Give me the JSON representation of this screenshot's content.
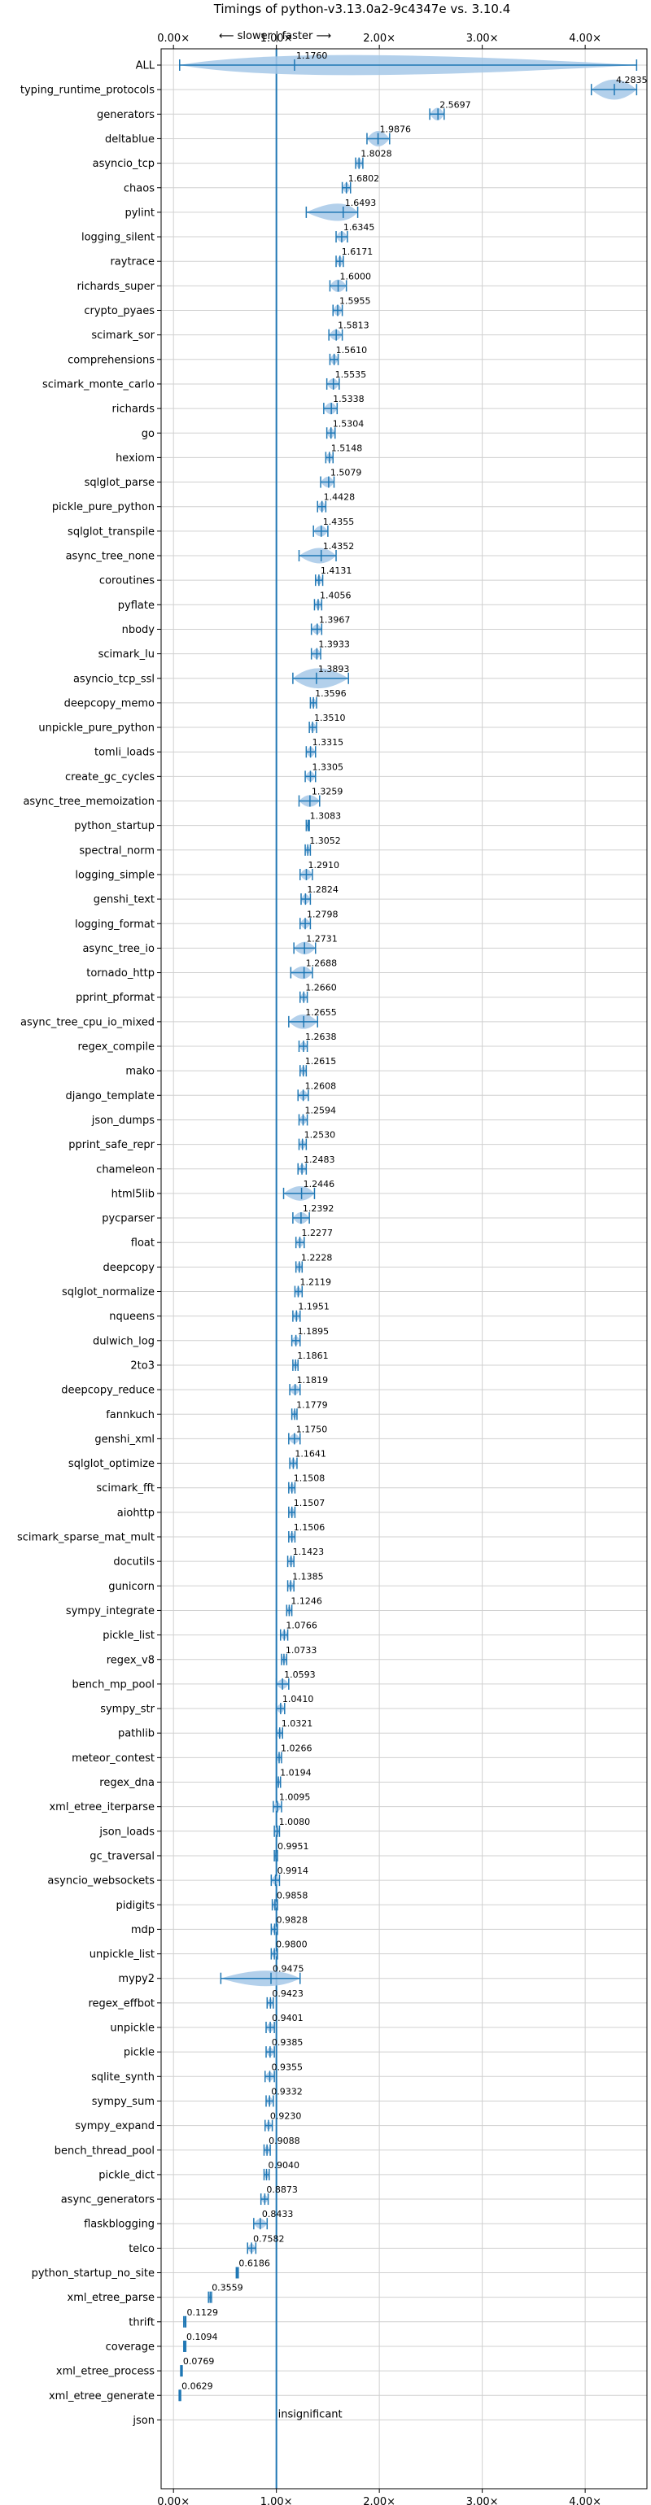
{
  "chart_data": {
    "type": "violin",
    "title": "Timings of python-v3.13.0a2-9c4347e vs. 3.10.4",
    "direction_label": "⟵ slower | faster ⟶",
    "xlim": [
      -0.12,
      4.6
    ],
    "x_ticks": [
      0,
      1,
      2,
      3,
      4
    ],
    "x_tick_labels": [
      "0.00×",
      "1.00×",
      "2.00×",
      "3.00×",
      "4.00×"
    ],
    "grid": true,
    "reference_value": 1.0,
    "insignificant_label": "insignificant",
    "benchmarks": [
      {
        "name": "ALL",
        "value": 1.176,
        "min": 0.06,
        "max": 4.5,
        "spread": 0.5
      },
      {
        "name": "typing_runtime_protocols",
        "value": 4.2835,
        "min": 4.06,
        "max": 4.5,
        "spread": 0.18
      },
      {
        "name": "generators",
        "value": 2.5697,
        "min": 2.49,
        "max": 2.63,
        "spread": 0.07
      },
      {
        "name": "deltablue",
        "value": 1.9876,
        "min": 1.88,
        "max": 2.1,
        "spread": 0.1
      },
      {
        "name": "asyncio_tcp",
        "value": 1.8028,
        "min": 1.77,
        "max": 1.84,
        "spread": 0.04
      },
      {
        "name": "chaos",
        "value": 1.6802,
        "min": 1.64,
        "max": 1.72,
        "spread": 0.04
      },
      {
        "name": "pylint",
        "value": 1.6493,
        "min": 1.29,
        "max": 1.79,
        "spread": 0.12
      },
      {
        "name": "logging_silent",
        "value": 1.6345,
        "min": 1.58,
        "max": 1.69,
        "spread": 0.05
      },
      {
        "name": "raytrace",
        "value": 1.6171,
        "min": 1.58,
        "max": 1.65,
        "spread": 0.04
      },
      {
        "name": "richards_super",
        "value": 1.6,
        "min": 1.52,
        "max": 1.68,
        "spread": 0.07
      },
      {
        "name": "crypto_pyaes",
        "value": 1.5955,
        "min": 1.55,
        "max": 1.64,
        "spread": 0.05
      },
      {
        "name": "scimark_sor",
        "value": 1.5813,
        "min": 1.51,
        "max": 1.64,
        "spread": 0.05
      },
      {
        "name": "comprehensions",
        "value": 1.561,
        "min": 1.52,
        "max": 1.6,
        "spread": 0.04
      },
      {
        "name": "scimark_monte_carlo",
        "value": 1.5535,
        "min": 1.49,
        "max": 1.61,
        "spread": 0.05
      },
      {
        "name": "richards",
        "value": 1.5338,
        "min": 1.46,
        "max": 1.59,
        "spread": 0.06
      },
      {
        "name": "go",
        "value": 1.5304,
        "min": 1.49,
        "max": 1.57,
        "spread": 0.04
      },
      {
        "name": "hexiom",
        "value": 1.5148,
        "min": 1.48,
        "max": 1.55,
        "spread": 0.03
      },
      {
        "name": "sqlglot_parse",
        "value": 1.5079,
        "min": 1.43,
        "max": 1.56,
        "spread": 0.05
      },
      {
        "name": "pickle_pure_python",
        "value": 1.4428,
        "min": 1.4,
        "max": 1.48,
        "spread": 0.04
      },
      {
        "name": "sqlglot_transpile",
        "value": 1.4355,
        "min": 1.36,
        "max": 1.5,
        "spread": 0.05
      },
      {
        "name": "async_tree_none",
        "value": 1.4352,
        "min": 1.22,
        "max": 1.58,
        "spread": 0.1
      },
      {
        "name": "coroutines",
        "value": 1.4131,
        "min": 1.38,
        "max": 1.45,
        "spread": 0.03
      },
      {
        "name": "pyflate",
        "value": 1.4056,
        "min": 1.37,
        "max": 1.44,
        "spread": 0.03
      },
      {
        "name": "nbody",
        "value": 1.3967,
        "min": 1.34,
        "max": 1.44,
        "spread": 0.04
      },
      {
        "name": "scimark_lu",
        "value": 1.3933,
        "min": 1.34,
        "max": 1.43,
        "spread": 0.04
      },
      {
        "name": "asyncio_tcp_ssl",
        "value": 1.3893,
        "min": 1.16,
        "max": 1.7,
        "spread": 0.15
      },
      {
        "name": "deepcopy_memo",
        "value": 1.3596,
        "min": 1.33,
        "max": 1.39,
        "spread": 0.03
      },
      {
        "name": "unpickle_pure_python",
        "value": 1.351,
        "min": 1.32,
        "max": 1.39,
        "spread": 0.03
      },
      {
        "name": "tomli_loads",
        "value": 1.3315,
        "min": 1.29,
        "max": 1.38,
        "spread": 0.04
      },
      {
        "name": "create_gc_cycles",
        "value": 1.3305,
        "min": 1.28,
        "max": 1.38,
        "spread": 0.04
      },
      {
        "name": "async_tree_memoization",
        "value": 1.3259,
        "min": 1.22,
        "max": 1.42,
        "spread": 0.06
      },
      {
        "name": "python_startup",
        "value": 1.3083,
        "min": 1.29,
        "max": 1.32,
        "spread": 0.02
      },
      {
        "name": "spectral_norm",
        "value": 1.3052,
        "min": 1.28,
        "max": 1.33,
        "spread": 0.02
      },
      {
        "name": "logging_simple",
        "value": 1.291,
        "min": 1.23,
        "max": 1.35,
        "spread": 0.05
      },
      {
        "name": "genshi_text",
        "value": 1.2824,
        "min": 1.24,
        "max": 1.33,
        "spread": 0.04
      },
      {
        "name": "logging_format",
        "value": 1.2798,
        "min": 1.23,
        "max": 1.33,
        "spread": 0.04
      },
      {
        "name": "async_tree_io",
        "value": 1.2731,
        "min": 1.17,
        "max": 1.38,
        "spread": 0.07
      },
      {
        "name": "tornado_http",
        "value": 1.2688,
        "min": 1.14,
        "max": 1.35,
        "spread": 0.07
      },
      {
        "name": "pprint_pformat",
        "value": 1.266,
        "min": 1.23,
        "max": 1.3,
        "spread": 0.03
      },
      {
        "name": "async_tree_cpu_io_mixed",
        "value": 1.2655,
        "min": 1.12,
        "max": 1.4,
        "spread": 0.09
      },
      {
        "name": "regex_compile",
        "value": 1.2638,
        "min": 1.22,
        "max": 1.3,
        "spread": 0.03
      },
      {
        "name": "mako",
        "value": 1.2615,
        "min": 1.23,
        "max": 1.29,
        "spread": 0.03
      },
      {
        "name": "django_template",
        "value": 1.2608,
        "min": 1.21,
        "max": 1.31,
        "spread": 0.04
      },
      {
        "name": "json_dumps",
        "value": 1.2594,
        "min": 1.22,
        "max": 1.3,
        "spread": 0.03
      },
      {
        "name": "pprint_safe_repr",
        "value": 1.253,
        "min": 1.22,
        "max": 1.29,
        "spread": 0.03
      },
      {
        "name": "chameleon",
        "value": 1.2483,
        "min": 1.21,
        "max": 1.29,
        "spread": 0.03
      },
      {
        "name": "html5lib",
        "value": 1.2446,
        "min": 1.07,
        "max": 1.37,
        "spread": 0.09
      },
      {
        "name": "pycparser",
        "value": 1.2392,
        "min": 1.16,
        "max": 1.32,
        "spread": 0.06
      },
      {
        "name": "float",
        "value": 1.2277,
        "min": 1.19,
        "max": 1.27,
        "spread": 0.03
      },
      {
        "name": "deepcopy",
        "value": 1.2228,
        "min": 1.19,
        "max": 1.25,
        "spread": 0.03
      },
      {
        "name": "sqlglot_normalize",
        "value": 1.2119,
        "min": 1.18,
        "max": 1.25,
        "spread": 0.03
      },
      {
        "name": "nqueens",
        "value": 1.1951,
        "min": 1.16,
        "max": 1.23,
        "spread": 0.03
      },
      {
        "name": "dulwich_log",
        "value": 1.1895,
        "min": 1.15,
        "max": 1.23,
        "spread": 0.03
      },
      {
        "name": "2to3",
        "value": 1.1861,
        "min": 1.16,
        "max": 1.21,
        "spread": 0.02
      },
      {
        "name": "deepcopy_reduce",
        "value": 1.1819,
        "min": 1.13,
        "max": 1.23,
        "spread": 0.04
      },
      {
        "name": "fannkuch",
        "value": 1.1779,
        "min": 1.15,
        "max": 1.2,
        "spread": 0.02
      },
      {
        "name": "genshi_xml",
        "value": 1.175,
        "min": 1.12,
        "max": 1.23,
        "spread": 0.04
      },
      {
        "name": "sqlglot_optimize",
        "value": 1.1641,
        "min": 1.13,
        "max": 1.2,
        "spread": 0.03
      },
      {
        "name": "scimark_fft",
        "value": 1.1508,
        "min": 1.12,
        "max": 1.18,
        "spread": 0.03
      },
      {
        "name": "aiohttp",
        "value": 1.1507,
        "min": 1.12,
        "max": 1.18,
        "spread": 0.03
      },
      {
        "name": "scimark_sparse_mat_mult",
        "value": 1.1506,
        "min": 1.12,
        "max": 1.18,
        "spread": 0.03
      },
      {
        "name": "docutils",
        "value": 1.1423,
        "min": 1.11,
        "max": 1.17,
        "spread": 0.03
      },
      {
        "name": "gunicorn",
        "value": 1.1385,
        "min": 1.11,
        "max": 1.17,
        "spread": 0.03
      },
      {
        "name": "sympy_integrate",
        "value": 1.1246,
        "min": 1.1,
        "max": 1.15,
        "spread": 0.02
      },
      {
        "name": "pickle_list",
        "value": 1.0766,
        "min": 1.04,
        "max": 1.11,
        "spread": 0.03
      },
      {
        "name": "regex_v8",
        "value": 1.0733,
        "min": 1.05,
        "max": 1.1,
        "spread": 0.02
      },
      {
        "name": "bench_mp_pool",
        "value": 1.0593,
        "min": 1.0,
        "max": 1.12,
        "spread": 0.04
      },
      {
        "name": "sympy_str",
        "value": 1.041,
        "min": 1.0,
        "max": 1.08,
        "spread": 0.03
      },
      {
        "name": "pathlib",
        "value": 1.0321,
        "min": 1.0,
        "max": 1.06,
        "spread": 0.03
      },
      {
        "name": "meteor_contest",
        "value": 1.0266,
        "min": 1.0,
        "max": 1.05,
        "spread": 0.02
      },
      {
        "name": "regex_dna",
        "value": 1.0194,
        "min": 1.0,
        "max": 1.04,
        "spread": 0.02
      },
      {
        "name": "xml_etree_iterparse",
        "value": 1.0095,
        "min": 0.97,
        "max": 1.05,
        "spread": 0.03
      },
      {
        "name": "json_loads",
        "value": 1.008,
        "min": 0.98,
        "max": 1.03,
        "spread": 0.02
      },
      {
        "name": "gc_traversal",
        "value": 0.9951,
        "min": 0.98,
        "max": 1.01,
        "spread": 0.015
      },
      {
        "name": "asyncio_websockets",
        "value": 0.9914,
        "min": 0.95,
        "max": 1.03,
        "spread": 0.03
      },
      {
        "name": "pidigits",
        "value": 0.9858,
        "min": 0.96,
        "max": 1.01,
        "spread": 0.02
      },
      {
        "name": "mdp",
        "value": 0.9828,
        "min": 0.95,
        "max": 1.01,
        "spread": 0.02
      },
      {
        "name": "unpickle_list",
        "value": 0.98,
        "min": 0.95,
        "max": 1.01,
        "spread": 0.02
      },
      {
        "name": "mypy2",
        "value": 0.9475,
        "min": 0.46,
        "max": 1.23,
        "spread": 0.1
      },
      {
        "name": "regex_effbot",
        "value": 0.9423,
        "min": 0.91,
        "max": 0.97,
        "spread": 0.02
      },
      {
        "name": "unpickle",
        "value": 0.9401,
        "min": 0.9,
        "max": 0.98,
        "spread": 0.03
      },
      {
        "name": "pickle",
        "value": 0.9385,
        "min": 0.9,
        "max": 0.98,
        "spread": 0.03
      },
      {
        "name": "sqlite_synth",
        "value": 0.9355,
        "min": 0.89,
        "max": 0.98,
        "spread": 0.03
      },
      {
        "name": "sympy_sum",
        "value": 0.9332,
        "min": 0.9,
        "max": 0.97,
        "spread": 0.02
      },
      {
        "name": "sympy_expand",
        "value": 0.923,
        "min": 0.89,
        "max": 0.96,
        "spread": 0.02
      },
      {
        "name": "bench_thread_pool",
        "value": 0.9088,
        "min": 0.88,
        "max": 0.94,
        "spread": 0.02
      },
      {
        "name": "pickle_dict",
        "value": 0.904,
        "min": 0.88,
        "max": 0.93,
        "spread": 0.02
      },
      {
        "name": "async_generators",
        "value": 0.8873,
        "min": 0.85,
        "max": 0.92,
        "spread": 0.02
      },
      {
        "name": "flaskblogging",
        "value": 0.8433,
        "min": 0.78,
        "max": 0.91,
        "spread": 0.04
      },
      {
        "name": "telco",
        "value": 0.7582,
        "min": 0.72,
        "max": 0.8,
        "spread": 0.03
      },
      {
        "name": "python_startup_no_site",
        "value": 0.6186,
        "min": 0.61,
        "max": 0.63,
        "spread": 0.01
      },
      {
        "name": "xml_etree_parse",
        "value": 0.3559,
        "min": 0.34,
        "max": 0.37,
        "spread": 0.01
      },
      {
        "name": "thrift",
        "value": 0.1129,
        "min": 0.1,
        "max": 0.12,
        "spread": 0.008
      },
      {
        "name": "coverage",
        "value": 0.1094,
        "min": 0.1,
        "max": 0.12,
        "spread": 0.008
      },
      {
        "name": "xml_etree_process",
        "value": 0.0769,
        "min": 0.07,
        "max": 0.085,
        "spread": 0.006
      },
      {
        "name": "xml_etree_generate",
        "value": 0.0629,
        "min": 0.055,
        "max": 0.07,
        "spread": 0.006
      },
      {
        "name": "json",
        "value": null,
        "min": null,
        "max": null,
        "spread": 0
      }
    ],
    "colors": {
      "violin": "#a6c8e8",
      "line": "#1f77b4",
      "reference": "#1f77b4",
      "grid": "#d0d0d0",
      "text": "#000000"
    }
  }
}
